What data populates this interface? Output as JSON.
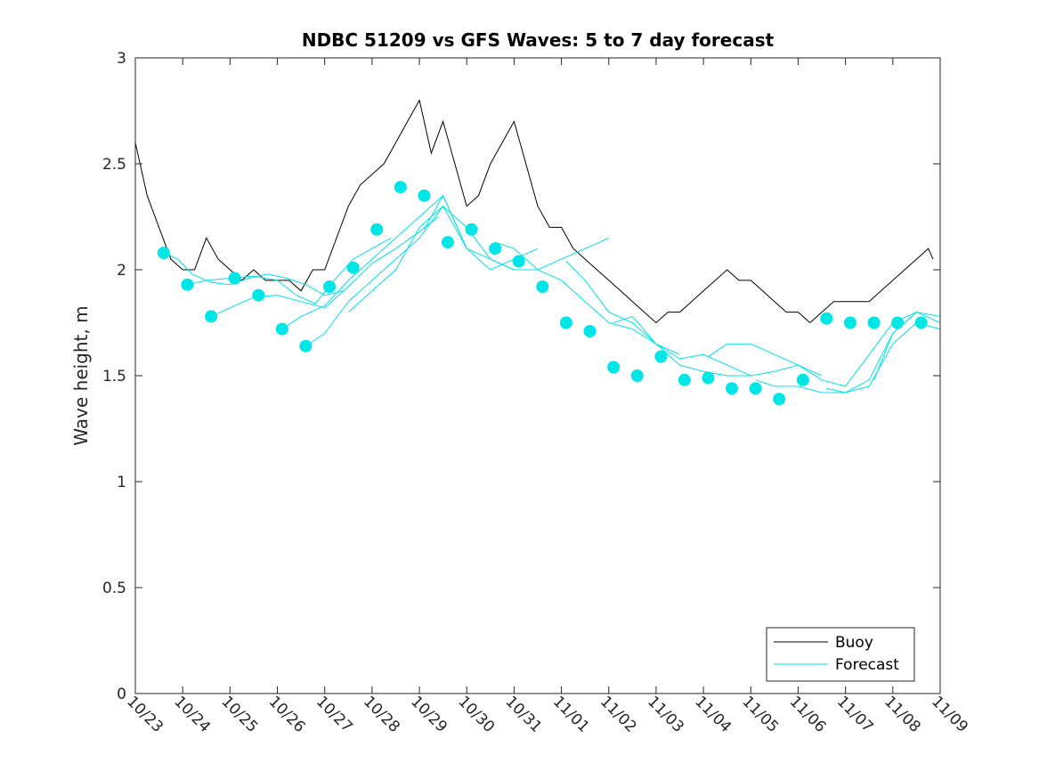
{
  "chart_data": {
    "type": "line",
    "title": "NDBC 51209 vs GFS Waves: 5 to 7 day forecast",
    "xlabel": "",
    "ylabel": "Wave height, m",
    "xlim": [
      0,
      17
    ],
    "ylim": [
      0,
      3
    ],
    "x_tick_labels": [
      "10/23",
      "10/24",
      "10/25",
      "10/26",
      "10/27",
      "10/28",
      "10/29",
      "10/30",
      "10/31",
      "11/01",
      "11/02",
      "11/03",
      "11/04",
      "11/05",
      "11/06",
      "11/07",
      "11/08",
      "11/09"
    ],
    "y_tick_labels": [
      "0",
      "0.5",
      "1",
      "1.5",
      "2",
      "2.5",
      "3"
    ],
    "y_ticks": [
      0,
      0.5,
      1,
      1.5,
      2,
      2.5,
      3
    ],
    "legend": {
      "position": "bottom-right",
      "entries": [
        "Buoy",
        "Forecast"
      ]
    },
    "colors": {
      "buoy": "#000000",
      "forecast": "#00e5e5",
      "axis": "#262626"
    },
    "series": [
      {
        "name": "Buoy",
        "x": [
          0,
          0.25,
          0.5,
          0.75,
          1,
          1.25,
          1.5,
          1.75,
          2,
          2.25,
          2.5,
          2.75,
          3,
          3.25,
          3.5,
          3.75,
          4,
          4.25,
          4.5,
          4.75,
          5,
          5.25,
          5.5,
          5.75,
          6,
          6.25,
          6.5,
          6.75,
          7,
          7.25,
          7.5,
          7.75,
          8,
          8.25,
          8.5,
          8.75,
          9,
          9.25,
          9.5,
          9.75,
          10,
          10.25,
          10.5,
          10.75,
          11,
          11.25,
          11.5,
          11.75,
          12,
          12.25,
          12.5,
          12.75,
          13,
          13.25,
          13.5,
          13.75,
          14,
          14.25,
          14.5,
          14.75,
          15,
          15.25,
          15.5,
          15.75,
          16,
          16.25,
          16.5,
          16.75,
          16.85
        ],
        "values": [
          2.6,
          2.35,
          2.2,
          2.05,
          2.0,
          2.0,
          2.15,
          2.05,
          2.0,
          1.95,
          2.0,
          1.95,
          1.95,
          1.95,
          1.9,
          2.0,
          2.0,
          2.15,
          2.3,
          2.4,
          2.45,
          2.5,
          2.6,
          2.7,
          2.8,
          2.55,
          2.7,
          2.5,
          2.3,
          2.35,
          2.5,
          2.6,
          2.7,
          2.5,
          2.3,
          2.2,
          2.2,
          2.1,
          2.05,
          2.0,
          1.95,
          1.9,
          1.85,
          1.8,
          1.75,
          1.8,
          1.8,
          1.85,
          1.9,
          1.95,
          2.0,
          1.95,
          1.95,
          1.9,
          1.85,
          1.8,
          1.8,
          1.75,
          1.8,
          1.85,
          1.85,
          1.85,
          1.85,
          1.9,
          1.95,
          2.0,
          2.05,
          2.1,
          2.05
        ]
      },
      {
        "name": "Forecast",
        "lines": [
          {
            "x": [
              0.6,
              0.9,
              1.2,
              1.6,
              2.0,
              2.4,
              2.8,
              3.2,
              3.6,
              4.0,
              4.4
            ],
            "values": [
              2.08,
              2.05,
              1.98,
              1.94,
              1.93,
              1.96,
              1.98,
              1.96,
              1.93,
              1.88,
              1.9
            ]
          },
          {
            "x": [
              1.1,
              1.5,
              2.0,
              2.5,
              3.0,
              3.4,
              3.8,
              4.2,
              4.6,
              5.0,
              5.4
            ],
            "values": [
              1.93,
              1.95,
              1.96,
              1.97,
              1.95,
              1.88,
              1.84,
              1.95,
              2.05,
              2.1,
              2.15
            ]
          },
          {
            "x": [
              1.6,
              2.0,
              2.5,
              3.0,
              3.5,
              4.0,
              4.5,
              5.0,
              5.5,
              6.0,
              6.4
            ],
            "values": [
              1.78,
              1.82,
              1.87,
              1.88,
              1.85,
              1.82,
              1.92,
              2.03,
              2.1,
              2.18,
              2.25
            ]
          },
          {
            "x": [
              3.1,
              3.5,
              4.0,
              4.5,
              5.0,
              5.5,
              6.0,
              6.5,
              7.0
            ],
            "values": [
              1.72,
              1.78,
              1.83,
              1.95,
              2.05,
              2.15,
              2.25,
              2.35,
              2.1
            ]
          },
          {
            "x": [
              3.6,
              4.0,
              4.5,
              5.0,
              5.5,
              6.0,
              6.5,
              7.0,
              7.5,
              8.0
            ],
            "values": [
              1.64,
              1.7,
              1.85,
              1.95,
              2.05,
              2.15,
              2.3,
              2.2,
              2.05,
              2.0
            ]
          },
          {
            "x": [
              4.5,
              5.0,
              5.5,
              6.0,
              6.5,
              7.0,
              7.5,
              8.0,
              8.5
            ],
            "values": [
              1.8,
              1.9,
              2.0,
              2.2,
              2.3,
              2.1,
              2.0,
              2.05,
              2.1
            ]
          },
          {
            "x": [
              6.1,
              6.5,
              7.0,
              7.5,
              8.0,
              8.5,
              9.0,
              9.5,
              10.0
            ],
            "values": [
              2.19,
              2.35,
              2.1,
              2.05,
              2.0,
              2.0,
              2.05,
              2.1,
              2.15
            ]
          },
          {
            "x": [
              7.6,
              8.0,
              8.5,
              9.0,
              9.5,
              10.0,
              10.5,
              11.0,
              11.5
            ],
            "values": [
              2.13,
              2.1,
              2.0,
              1.95,
              1.85,
              1.75,
              1.72,
              1.65,
              1.6
            ]
          },
          {
            "x": [
              9.1,
              9.5,
              10.0,
              10.5,
              11.0,
              11.5,
              12.0,
              12.5,
              13.0
            ],
            "values": [
              2.04,
              1.95,
              1.8,
              1.75,
              1.65,
              1.55,
              1.52,
              1.5,
              1.5
            ]
          },
          {
            "x": [
              10.1,
              10.5,
              11.0,
              11.5,
              12.0,
              12.5,
              13.0,
              13.5,
              14.0,
              14.5
            ],
            "values": [
              1.75,
              1.78,
              1.65,
              1.58,
              1.6,
              1.55,
              1.5,
              1.52,
              1.55,
              1.5
            ]
          },
          {
            "x": [
              12.1,
              12.5,
              13.0,
              13.5,
              14.0,
              14.5,
              15.0,
              15.5,
              16.0,
              16.5
            ],
            "values": [
              1.59,
              1.65,
              1.65,
              1.6,
              1.55,
              1.48,
              1.45,
              1.6,
              1.75,
              1.8
            ]
          },
          {
            "x": [
              13.1,
              13.5,
              14.0,
              14.5,
              15.0,
              15.5,
              16.0,
              16.5,
              17.0
            ],
            "values": [
              1.48,
              1.45,
              1.45,
              1.42,
              1.42,
              1.48,
              1.7,
              1.8,
              1.78
            ]
          },
          {
            "x": [
              14.6,
              15.0,
              15.5,
              16.0,
              16.5,
              17.0
            ],
            "values": [
              1.44,
              1.42,
              1.45,
              1.65,
              1.75,
              1.72
            ]
          },
          {
            "x": [
              15.6,
              16.0,
              16.5,
              17.0
            ],
            "values": [
              1.48,
              1.7,
              1.8,
              1.75
            ]
          }
        ],
        "markers": {
          "x": [
            0.6,
            1.1,
            1.6,
            2.1,
            2.6,
            3.1,
            3.6,
            4.1,
            4.6,
            5.1,
            5.6,
            6.1,
            6.6,
            7.1,
            7.6,
            8.1,
            8.6,
            9.1,
            9.6,
            10.1,
            10.6,
            11.1,
            11.6,
            12.1,
            12.6,
            13.1,
            13.6,
            14.1,
            14.6,
            15.1,
            15.6,
            16.1,
            16.6
          ],
          "values": [
            2.08,
            1.93,
            1.78,
            1.96,
            1.88,
            1.72,
            1.64,
            1.92,
            2.01,
            2.19,
            2.39,
            2.35,
            2.13,
            2.19,
            2.1,
            2.04,
            1.92,
            1.75,
            1.71,
            1.54,
            1.5,
            1.59,
            1.48,
            1.49,
            1.44,
            1.44,
            1.39,
            1.48,
            1.77,
            1.75,
            1.75,
            1.75,
            1.75
          ]
        }
      }
    ]
  }
}
